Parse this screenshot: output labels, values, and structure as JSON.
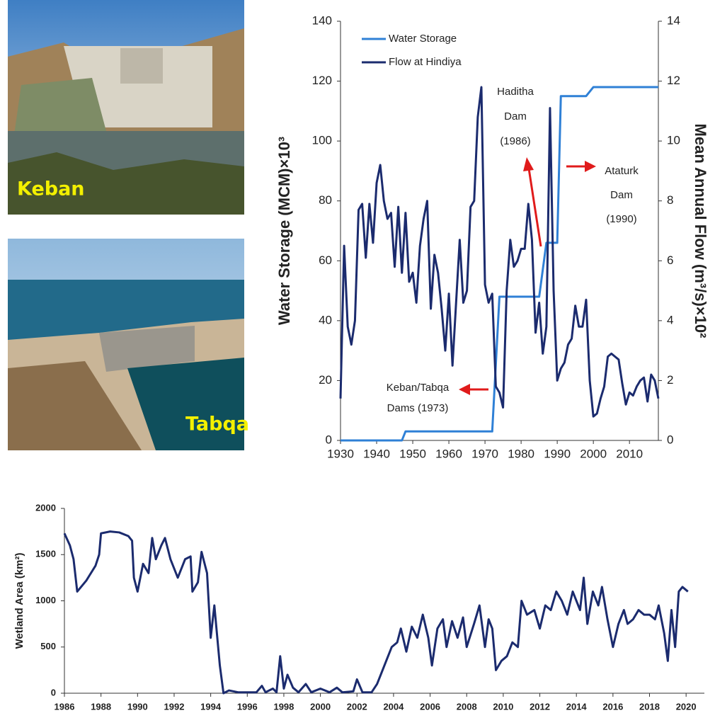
{
  "photos": [
    "Keban",
    "Tabqa"
  ],
  "chart_data": [
    {
      "type": "line",
      "ylabel": "Water Storage (MCM)×10³",
      "y2label": "Mean Annual Flow (m³/s)×10²",
      "xlim": [
        1930,
        2018
      ],
      "xticks": [
        1930,
        1940,
        1950,
        1960,
        1970,
        1980,
        1990,
        2000,
        2010
      ],
      "ylim": [
        0,
        140
      ],
      "yticks": [
        0,
        20,
        40,
        60,
        80,
        100,
        120,
        140
      ],
      "y2lim": [
        0,
        14
      ],
      "y2ticks": [
        0,
        2,
        4,
        6,
        8,
        10,
        12,
        14
      ],
      "legend": "upper left",
      "series": [
        {
          "name": "Water Storage",
          "color": "#2f80d6",
          "x": [
            1930,
            1947,
            1948,
            1972,
            1974,
            1985,
            1987,
            1990,
            1991,
            1998,
            2000,
            2018
          ],
          "values": [
            0,
            0,
            3,
            3,
            48,
            48,
            66,
            66,
            115,
            115,
            118,
            118
          ]
        },
        {
          "name": "Flow at Hindiya",
          "color": "#1b2b6e",
          "axis": "y2",
          "x": [
            1930,
            1931,
            1932,
            1933,
            1934,
            1935,
            1936,
            1937,
            1938,
            1939,
            1940,
            1941,
            1942,
            1943,
            1944,
            1945,
            1946,
            1947,
            1948,
            1949,
            1950,
            1951,
            1952,
            1953,
            1954,
            1955,
            1956,
            1957,
            1958,
            1959,
            1960,
            1961,
            1962,
            1963,
            1964,
            1965,
            1966,
            1967,
            1968,
            1969,
            1970,
            1971,
            1972,
            1973,
            1974,
            1975,
            1976,
            1977,
            1978,
            1979,
            1980,
            1981,
            1982,
            1983,
            1984,
            1985,
            1986,
            1987,
            1988,
            1989,
            1990,
            1991,
            1992,
            1993,
            1994,
            1995,
            1996,
            1997,
            1998,
            1999,
            2000,
            2001,
            2002,
            2003,
            2004,
            2005,
            2006,
            2007,
            2008,
            2009,
            2010,
            2011,
            2012,
            2013,
            2014,
            2015,
            2016,
            2017,
            2018
          ],
          "values": [
            1.4,
            6.5,
            3.8,
            3.2,
            4.0,
            7.7,
            7.9,
            6.1,
            7.9,
            6.6,
            8.6,
            9.2,
            8.0,
            7.4,
            7.6,
            5.8,
            7.8,
            5.6,
            7.6,
            5.3,
            5.6,
            4.6,
            6.5,
            7.4,
            8.0,
            4.4,
            6.2,
            5.6,
            4.4,
            3.0,
            4.9,
            2.5,
            4.6,
            6.7,
            4.6,
            5.0,
            7.8,
            8.0,
            10.8,
            11.8,
            5.2,
            4.6,
            4.9,
            1.8,
            1.6,
            1.1,
            5.0,
            6.7,
            5.8,
            6.0,
            6.4,
            6.4,
            7.9,
            6.7,
            3.6,
            4.6,
            2.9,
            3.8,
            11.1,
            5.0,
            2.0,
            2.4,
            2.6,
            3.2,
            3.4,
            4.5,
            3.8,
            3.8,
            4.7,
            2.0,
            0.8,
            0.9,
            1.4,
            1.8,
            2.8,
            2.9,
            2.8,
            2.7,
            1.9,
            1.2,
            1.6,
            1.5,
            1.8,
            2.0,
            2.1,
            1.3,
            2.2,
            2.0,
            1.4
          ]
        }
      ],
      "annotations": [
        {
          "text": [
            "Haditha",
            "Dam",
            "(1986)"
          ]
        },
        {
          "text": [
            "Ataturk",
            "Dam",
            "(1990)"
          ]
        },
        {
          "text": [
            "Keban/Tabqa",
            "Dams (1973)"
          ]
        }
      ]
    },
    {
      "type": "line",
      "ylabel": "Wetland Area (km²)",
      "xlim": [
        1986,
        2021
      ],
      "xticks": [
        1986,
        1988,
        1990,
        1992,
        1994,
        1996,
        1998,
        2000,
        2002,
        2004,
        2006,
        2008,
        2010,
        2012,
        2014,
        2016,
        2018,
        2020
      ],
      "ylim": [
        0,
        2000
      ],
      "yticks": [
        0,
        500,
        1000,
        1500,
        2000
      ],
      "series": [
        {
          "color": "#1b2b6e",
          "x": [
            1986.0,
            1986.3,
            1986.5,
            1986.7,
            1987.2,
            1987.7,
            1987.9,
            1988.0,
            1988.5,
            1989.0,
            1989.5,
            1989.7,
            1989.8,
            1990.0,
            1990.3,
            1990.6,
            1990.8,
            1991.0,
            1991.3,
            1991.5,
            1991.8,
            1992.2,
            1992.6,
            1992.9,
            1993.0,
            1993.3,
            1993.5,
            1993.8,
            1994.0,
            1994.2,
            1994.5,
            1994.7,
            1995.0,
            1995.5,
            1996.0,
            1996.5,
            1996.8,
            1997.0,
            1997.4,
            1997.6,
            1997.8,
            1998.0,
            1998.2,
            1998.5,
            1998.8,
            1999.2,
            1999.5,
            2000.0,
            2000.5,
            2000.9,
            2001.2,
            2001.8,
            2002.0,
            2002.3,
            2002.8,
            2003.1,
            2003.3,
            2003.6,
            2003.9,
            2004.2,
            2004.4,
            2004.7,
            2005.0,
            2005.3,
            2005.6,
            2005.9,
            2006.1,
            2006.4,
            2006.7,
            2006.9,
            2007.2,
            2007.5,
            2007.8,
            2008.0,
            2008.4,
            2008.7,
            2009.0,
            2009.2,
            2009.4,
            2009.6,
            2009.9,
            2010.2,
            2010.5,
            2010.8,
            2011.0,
            2011.3,
            2011.7,
            2012.0,
            2012.3,
            2012.6,
            2012.9,
            2013.2,
            2013.5,
            2013.8,
            2014.2,
            2014.4,
            2014.6,
            2014.9,
            2015.2,
            2015.4,
            2015.7,
            2016.0,
            2016.3,
            2016.6,
            2016.8,
            2017.1,
            2017.4,
            2017.7,
            2018.0,
            2018.3,
            2018.5,
            2018.8,
            2019.0,
            2019.2,
            2019.4,
            2019.6,
            2019.8,
            2020.1
          ],
          "values": [
            1730,
            1600,
            1450,
            1100,
            1220,
            1380,
            1500,
            1730,
            1750,
            1740,
            1700,
            1650,
            1250,
            1100,
            1400,
            1300,
            1680,
            1450,
            1600,
            1680,
            1450,
            1250,
            1450,
            1480,
            1100,
            1200,
            1530,
            1300,
            600,
            950,
            300,
            0,
            30,
            10,
            10,
            10,
            80,
            10,
            50,
            10,
            400,
            50,
            200,
            60,
            10,
            100,
            10,
            50,
            10,
            60,
            10,
            20,
            150,
            10,
            10,
            100,
            200,
            350,
            500,
            550,
            700,
            450,
            720,
            600,
            850,
            600,
            300,
            700,
            800,
            500,
            780,
            600,
            820,
            500,
            750,
            950,
            500,
            800,
            700,
            250,
            350,
            400,
            550,
            500,
            1000,
            850,
            900,
            700,
            950,
            900,
            1100,
            1000,
            850,
            1100,
            900,
            1250,
            750,
            1100,
            950,
            1150,
            800,
            500,
            750,
            900,
            750,
            800,
            900,
            850,
            850,
            800,
            950,
            650,
            350,
            900,
            500,
            1100,
            1150,
            1100
          ]
        }
      ]
    }
  ]
}
